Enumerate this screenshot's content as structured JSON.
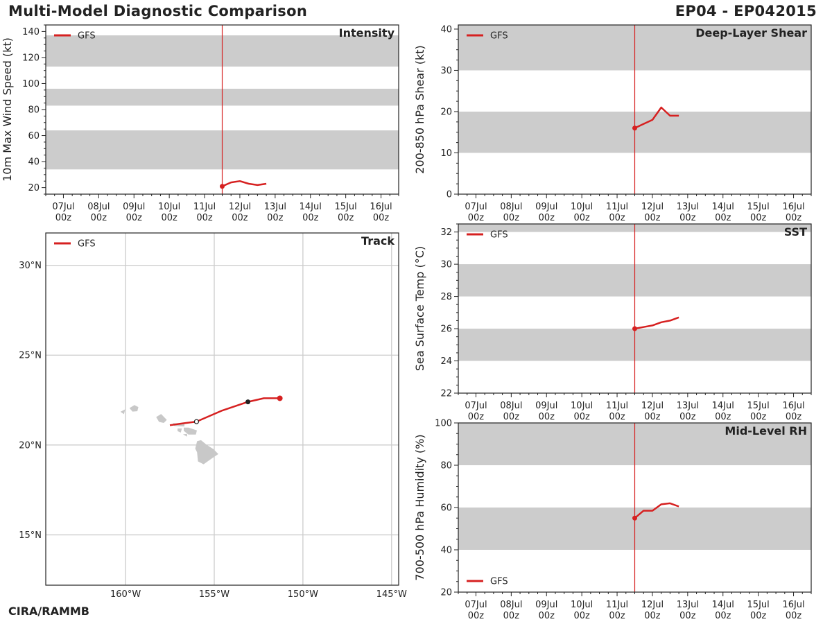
{
  "header": {
    "title": "Multi-Model Diagnostic Comparison",
    "storm_id": "EP04 - EP042015"
  },
  "footer": {
    "credit": "CIRA/RAMMB"
  },
  "colors": {
    "series": "#d62020",
    "band": "#cccccc",
    "grid": "#cccccc",
    "axis": "#222222",
    "land": "#c8c8c8"
  },
  "chart_data": [
    {
      "id": "intensity",
      "type": "line",
      "title": "Intensity",
      "ylabel": "10m Max Wind Speed (kt)",
      "ylim": [
        15,
        145
      ],
      "xlim": [
        6.5,
        16.5
      ],
      "yticks": [
        20,
        40,
        60,
        80,
        100,
        120,
        140
      ],
      "xtick_values": [
        7,
        8,
        9,
        10,
        11,
        12,
        13,
        14,
        15,
        16
      ],
      "xtick_labels": [
        "07Jul\n00z",
        "08Jul\n00z",
        "09Jul\n00z",
        "10Jul\n00z",
        "11Jul\n00z",
        "12Jul\n00z",
        "13Jul\n00z",
        "14Jul\n00z",
        "15Jul\n00z",
        "16Jul\n00z"
      ],
      "bands": [
        [
          34,
          64
        ],
        [
          83,
          96
        ],
        [
          113,
          137
        ]
      ],
      "init_x": 11.5,
      "legend": "top-left",
      "series": [
        {
          "name": "GFS",
          "x": [
            11.5,
            11.75,
            12.0,
            12.25,
            12.5,
            12.75
          ],
          "y": [
            21,
            24,
            25,
            23,
            22,
            23
          ]
        }
      ]
    },
    {
      "id": "shear",
      "type": "line",
      "title": "Deep-Layer Shear",
      "ylabel": "200-850 hPa Shear (kt)",
      "ylim": [
        0,
        41
      ],
      "xlim": [
        6.5,
        16.5
      ],
      "yticks": [
        0,
        10,
        20,
        30,
        40
      ],
      "xtick_values": [
        7,
        8,
        9,
        10,
        11,
        12,
        13,
        14,
        15,
        16
      ],
      "xtick_labels": [
        "07Jul\n00z",
        "08Jul\n00z",
        "09Jul\n00z",
        "10Jul\n00z",
        "11Jul\n00z",
        "12Jul\n00z",
        "13Jul\n00z",
        "14Jul\n00z",
        "15Jul\n00z",
        "16Jul\n00z"
      ],
      "bands": [
        [
          10,
          20
        ],
        [
          30,
          41
        ]
      ],
      "init_x": 11.5,
      "legend": "top-left",
      "series": [
        {
          "name": "GFS",
          "x": [
            11.5,
            11.75,
            12.0,
            12.25,
            12.5,
            12.75
          ],
          "y": [
            16,
            17,
            18,
            21,
            19,
            19
          ]
        }
      ]
    },
    {
      "id": "sst",
      "type": "line",
      "title": "SST",
      "ylabel": "Sea Surface Temp (°C)",
      "ylim": [
        22,
        32.5
      ],
      "xlim": [
        6.5,
        16.5
      ],
      "yticks": [
        22,
        24,
        26,
        28,
        30,
        32
      ],
      "xtick_values": [
        7,
        8,
        9,
        10,
        11,
        12,
        13,
        14,
        15,
        16
      ],
      "xtick_labels": [
        "07Jul\n00z",
        "08Jul\n00z",
        "09Jul\n00z",
        "10Jul\n00z",
        "11Jul\n00z",
        "12Jul\n00z",
        "13Jul\n00z",
        "14Jul\n00z",
        "15Jul\n00z",
        "16Jul\n00z"
      ],
      "bands": [
        [
          24,
          26
        ],
        [
          28,
          30
        ],
        [
          32,
          32.5
        ]
      ],
      "init_x": 11.5,
      "legend": "top-left",
      "series": [
        {
          "name": "GFS",
          "x": [
            11.5,
            11.75,
            12.0,
            12.25,
            12.5,
            12.75
          ],
          "y": [
            26.0,
            26.1,
            26.2,
            26.4,
            26.5,
            26.7
          ]
        }
      ]
    },
    {
      "id": "rh",
      "type": "line",
      "title": "Mid-Level RH",
      "ylabel": "700-500 hPa Humidity (%)",
      "ylim": [
        20,
        100
      ],
      "xlim": [
        6.5,
        16.5
      ],
      "yticks": [
        20,
        40,
        60,
        80,
        100
      ],
      "xtick_values": [
        7,
        8,
        9,
        10,
        11,
        12,
        13,
        14,
        15,
        16
      ],
      "xtick_labels": [
        "07Jul\n00z",
        "08Jul\n00z",
        "09Jul\n00z",
        "10Jul\n00z",
        "11Jul\n00z",
        "12Jul\n00z",
        "13Jul\n00z",
        "14Jul\n00z",
        "15Jul\n00z",
        "16Jul\n00z"
      ],
      "bands": [
        [
          40,
          60
        ],
        [
          80,
          100
        ]
      ],
      "init_x": 11.5,
      "legend": "bottom-left",
      "series": [
        {
          "name": "GFS",
          "x": [
            11.5,
            11.75,
            12.0,
            12.25,
            12.5,
            12.75
          ],
          "y": [
            55,
            58.5,
            58.5,
            61.5,
            62,
            60.5
          ]
        }
      ]
    },
    {
      "id": "track",
      "type": "scatter",
      "title": "Track",
      "legend": "top-left",
      "xlim": [
        -164.5,
        -144.6
      ],
      "ylim": [
        12.2,
        31.8
      ],
      "xticks": [
        -160,
        -155,
        -150,
        -145
      ],
      "xtick_labels": [
        "160°W",
        "155°W",
        "150°W",
        "145°W"
      ],
      "yticks": [
        15,
        20,
        25,
        30
      ],
      "ytick_labels": [
        "15°N",
        "20°N",
        "25°N",
        "30°N"
      ],
      "series": [
        {
          "name": "GFS",
          "lon": [
            -151.3,
            -152.2,
            -153.1,
            -154.6,
            -156.0,
            -156.8,
            -157.5
          ],
          "lat": [
            22.6,
            22.6,
            22.4,
            21.9,
            21.3,
            21.2,
            21.1
          ]
        }
      ],
      "markers": [
        {
          "lon": -151.3,
          "lat": 22.6,
          "style": "initial"
        },
        {
          "lon": -153.1,
          "lat": 22.4,
          "style": "filled-black"
        },
        {
          "lon": -156.0,
          "lat": 21.3,
          "style": "open"
        }
      ]
    }
  ]
}
